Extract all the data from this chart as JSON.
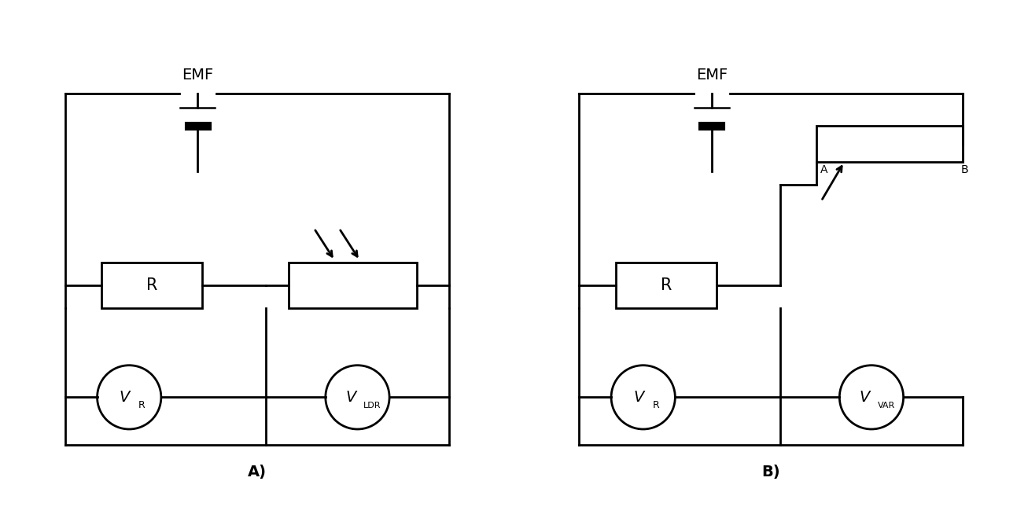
{
  "bg_color": "#ffffff",
  "line_color": "#000000",
  "line_width": 2.0,
  "fig_width": 13.07,
  "fig_height": 6.45,
  "label_A": "A)",
  "label_B": "B)",
  "emf_label": "EMF",
  "R_label": "R",
  "VR_sub": "R",
  "VLDR_sub": "LDR",
  "VVAR_sub": "VAR",
  "var_label_A": "A",
  "var_label_B": "B"
}
